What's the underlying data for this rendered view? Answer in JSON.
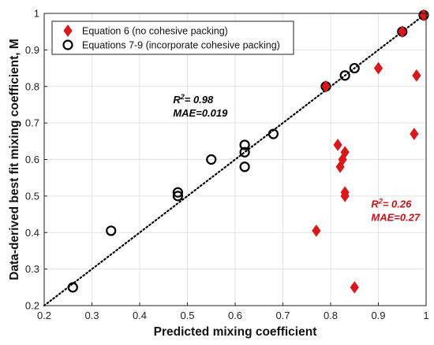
{
  "chart_data": {
    "type": "scatter",
    "title": "",
    "xlabel": "Predicted mixing coefficient",
    "ylabel": "Data-derived best fit mixing coefficient, M",
    "xlim": [
      0.2,
      1.0
    ],
    "ylim": [
      0.2,
      1.0
    ],
    "xticks": [
      0.2,
      0.3,
      0.4,
      0.5,
      0.6,
      0.7,
      0.8,
      0.9,
      1.0
    ],
    "yticks": [
      0.2,
      0.3,
      0.4,
      0.5,
      0.6,
      0.7,
      0.8,
      0.9,
      1.0
    ],
    "xtick_labels": [
      "0.2",
      "0.3",
      "0.4",
      "0.5",
      "0.6",
      "0.7",
      "0.8",
      "0.9",
      "1"
    ],
    "ytick_labels": [
      "0.2",
      "0.3",
      "0.4",
      "0.5",
      "0.6",
      "0.7",
      "0.8",
      "0.9",
      "1"
    ],
    "grid": true,
    "legend_position": "top-left",
    "series": [
      {
        "name": "Equation 6 (no cohesive packing)",
        "marker": "diamond",
        "color": "#d7191c",
        "points": [
          [
            0.77,
            0.405
          ],
          [
            0.79,
            0.8
          ],
          [
            0.815,
            0.64
          ],
          [
            0.82,
            0.58
          ],
          [
            0.825,
            0.6
          ],
          [
            0.83,
            0.62
          ],
          [
            0.83,
            0.51
          ],
          [
            0.83,
            0.5
          ],
          [
            0.85,
            0.25
          ],
          [
            0.9,
            0.85
          ],
          [
            0.95,
            0.95
          ],
          [
            0.975,
            0.67
          ],
          [
            0.98,
            0.83
          ],
          [
            0.995,
            0.995
          ]
        ]
      },
      {
        "name": "Equations 7-9 (incorporate cohesive packing)",
        "marker": "circle",
        "color": "#000000",
        "points": [
          [
            0.26,
            0.25
          ],
          [
            0.34,
            0.405
          ],
          [
            0.48,
            0.51
          ],
          [
            0.48,
            0.5
          ],
          [
            0.55,
            0.6
          ],
          [
            0.62,
            0.64
          ],
          [
            0.62,
            0.62
          ],
          [
            0.62,
            0.58
          ],
          [
            0.68,
            0.67
          ],
          [
            0.79,
            0.8
          ],
          [
            0.83,
            0.83
          ],
          [
            0.85,
            0.85
          ],
          [
            0.95,
            0.95
          ],
          [
            0.995,
            0.995
          ]
        ]
      }
    ],
    "fit_line": {
      "from": [
        0.2,
        0.2
      ],
      "to": [
        1.0,
        1.0
      ],
      "style": "dotted"
    },
    "annotations": [
      {
        "line1_pre": "R",
        "line1_sup": "2",
        "line1_post": "= 0.98",
        "line2": "MAE=0.019",
        "color": "#000000",
        "x": 0.47,
        "y": 0.754
      },
      {
        "line1_pre": "R",
        "line1_sup": "2",
        "line1_post": "= 0.26",
        "line2": "MAE=0.27",
        "color": "#c0141a",
        "x": 0.885,
        "y": 0.468
      }
    ]
  }
}
